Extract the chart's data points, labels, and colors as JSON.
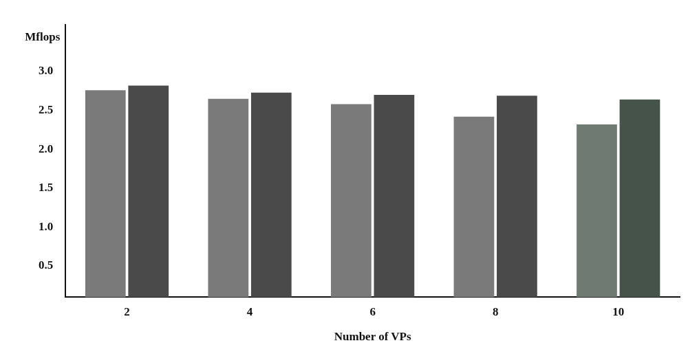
{
  "chart_data": {
    "type": "bar",
    "xlabel": "Number of VPs",
    "ylabel": "Mflops",
    "categories": [
      "2",
      "4",
      "6",
      "8",
      "10"
    ],
    "series": [
      {
        "color": "#7a7a7a",
        "colors": [
          null,
          null,
          null,
          null,
          "#6e7a72"
        ],
        "values": [
          2.76,
          2.65,
          2.58,
          2.42,
          2.32
        ]
      },
      {
        "color": "#4a4a4a",
        "colors": [
          null,
          null,
          null,
          null,
          "#46534b"
        ],
        "values": [
          2.82,
          2.73,
          2.7,
          2.69,
          2.64
        ]
      }
    ],
    "ylim": [
      0.1,
      3.6
    ],
    "yticks": [
      {
        "value": 0.5,
        "label": "0.5"
      },
      {
        "value": 1,
        "label": "1.0"
      },
      {
        "value": 1.5,
        "label": "1.5"
      },
      {
        "value": 2,
        "label": "2.0"
      },
      {
        "value": 2.5,
        "label": "2.5"
      },
      {
        "value": 3,
        "label": "3.0"
      }
    ],
    "grid": false,
    "legend": false
  }
}
